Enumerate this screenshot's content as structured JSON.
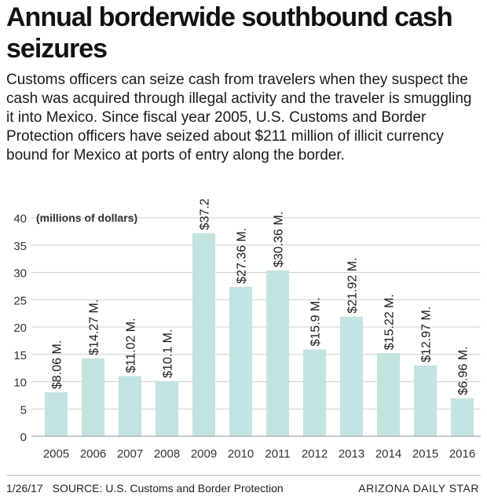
{
  "title": "Annual borderwide southbound cash seizures",
  "intro": "Customs officers can seize cash from travelers when they suspect the cash was acquired through illegal activity and the traveler is smuggling it into Mexico. Since fiscal year 2005, U.S. Customs and Border Protection officers have seized about $211 million of illicit currency bound for Mexico at ports of entry along the border.",
  "chart_data": {
    "type": "bar",
    "title": "Annual borderwide southbound cash seizures",
    "ylabel": "(millions of dollars)",
    "xlabel": "",
    "ylim": [
      0,
      40
    ],
    "yticks": [
      0,
      5,
      10,
      15,
      20,
      25,
      30,
      35,
      40
    ],
    "grid": true,
    "categories": [
      "2005",
      "2006",
      "2007",
      "2008",
      "2009",
      "2010",
      "2011",
      "2012",
      "2013",
      "2014",
      "2015",
      "2016"
    ],
    "values": [
      8.06,
      14.27,
      11.02,
      10.1,
      37.2,
      27.36,
      30.36,
      15.9,
      21.92,
      15.22,
      12.97,
      6.96
    ],
    "data_labels": [
      "$8.06 M.",
      "$14.27 M.",
      "$11.02 M.",
      "$10.1 M.",
      "$37.2 M.",
      "$27.36 M.",
      "$30.36 M.",
      "$15.9 M.",
      "$21.92 M.",
      "$15.22 M.",
      "$12.97 M.",
      "$6.96 M."
    ],
    "bar_color": "#c3e3e0",
    "grid_color": "#d0d0d0"
  },
  "footer": {
    "date": "1/26/17",
    "source": "SOURCE: U.S. Customs and Border Protection",
    "publisher": "ARIZONA DAILY STAR"
  }
}
